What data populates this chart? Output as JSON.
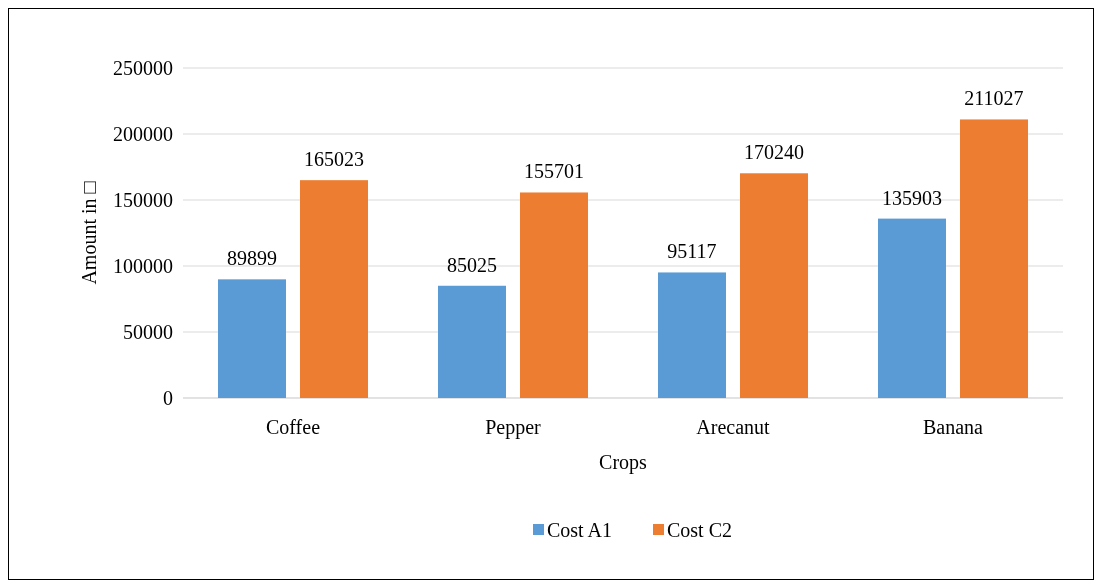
{
  "chart_data": {
    "type": "bar",
    "xlabel": "Crops",
    "ylabel": "Amount in □",
    "categories": [
      "Coffee",
      "Pepper",
      "Arecanut",
      "Banana"
    ],
    "series": [
      {
        "name": "Cost A1",
        "color": "#5b9bd5",
        "values": [
          89899,
          85025,
          95117,
          135903
        ]
      },
      {
        "name": "Cost C2",
        "color": "#ed7d31",
        "values": [
          165023,
          155701,
          170240,
          211027
        ]
      }
    ],
    "ylim": [
      0,
      250000
    ],
    "yticks": [
      0,
      50000,
      100000,
      150000,
      200000,
      250000
    ],
    "grid": "y",
    "legend": "bottom",
    "data_labels": true
  }
}
